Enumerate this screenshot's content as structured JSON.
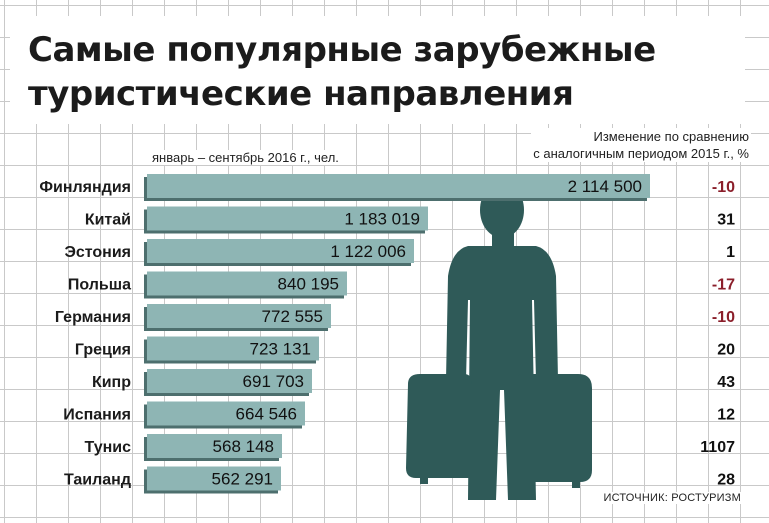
{
  "title_line1": "Самые популярные зарубежные",
  "title_line2": "туристические направления",
  "subtitle": "январь – сентябрь 2016 г., чел.",
  "change_header_line1": "Изменение по сравнению",
  "change_header_line2": "с аналогичным периодом 2015 г., %",
  "source": "ИСТОЧНИК: РОСТУРИЗМ",
  "colors": {
    "bar": "#8eb5b4",
    "bar_dark": "#4d6f6e",
    "silhouette": "#2f5a58",
    "negative": "#8b1e2a",
    "positive": "#111111"
  },
  "chart_data": {
    "type": "bar",
    "orientation": "horizontal",
    "title": "Самые популярные зарубежные туристические направления",
    "subtitle": "январь – сентябрь 2016 г., чел.",
    "categories": [
      "Финляндия",
      "Китай",
      "Эстония",
      "Польша",
      "Германия",
      "Греция",
      "Кипр",
      "Испания",
      "Тунис",
      "Таиланд"
    ],
    "value_labels": [
      "2 114 500",
      "1 183 019",
      "1 122 006",
      "840 195",
      "772 555",
      "723 131",
      "691 703",
      "664 546",
      "568 148",
      "562 291"
    ],
    "values": [
      2114500,
      1183019,
      1122006,
      840195,
      772555,
      723131,
      691703,
      664546,
      568148,
      562291
    ],
    "change_labels": [
      "-10",
      "31",
      "1",
      "-17",
      "-10",
      "20",
      "43",
      "12",
      "1107",
      "28"
    ],
    "change_pct": [
      -10,
      31,
      1,
      -17,
      -10,
      20,
      43,
      12,
      1107,
      28
    ]
  }
}
